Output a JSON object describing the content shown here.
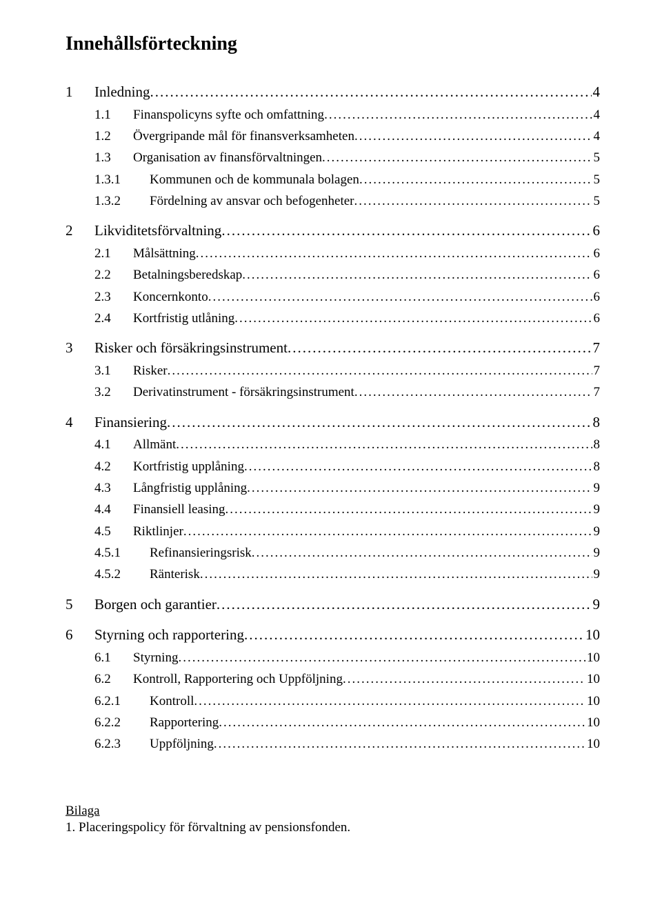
{
  "title": "Innehållsförteckning",
  "toc": [
    {
      "level": 1,
      "num": "1",
      "text": "Inledning",
      "page": "4"
    },
    {
      "level": 2,
      "num": "1.1",
      "text": "Finanspolicyns syfte och omfattning",
      "page": "4"
    },
    {
      "level": 2,
      "num": "1.2",
      "text": "Övergripande mål för finansverksamheten",
      "page": "4"
    },
    {
      "level": 2,
      "num": "1.3",
      "text": "Organisation av finansförvaltningen",
      "page": "5"
    },
    {
      "level": 3,
      "num": "1.3.1",
      "text": "Kommunen och de kommunala bolagen",
      "page": "5"
    },
    {
      "level": 3,
      "num": "1.3.2",
      "text": "Fördelning av ansvar och befogenheter",
      "page": "5"
    },
    {
      "level": 1,
      "num": "2",
      "text": "Likviditetsförvaltning",
      "page": "6"
    },
    {
      "level": 2,
      "num": "2.1",
      "text": "Målsättning",
      "page": "6"
    },
    {
      "level": 2,
      "num": "2.2",
      "text": "Betalningsberedskap",
      "page": "6"
    },
    {
      "level": 2,
      "num": "2.3",
      "text": "Koncernkonto",
      "page": "6"
    },
    {
      "level": 2,
      "num": "2.4",
      "text": "Kortfristig utlåning",
      "page": "6"
    },
    {
      "level": 1,
      "num": "3",
      "text": "Risker och försäkringsinstrument",
      "page": "7"
    },
    {
      "level": 2,
      "num": "3.1",
      "text": "Risker",
      "page": "7"
    },
    {
      "level": 2,
      "num": "3.2",
      "text": "Derivatinstrument - försäkringsinstrument",
      "page": "7"
    },
    {
      "level": 1,
      "num": "4",
      "text": "Finansiering",
      "page": "8"
    },
    {
      "level": 2,
      "num": "4.1",
      "text": "Allmänt",
      "page": "8"
    },
    {
      "level": 2,
      "num": "4.2",
      "text": "Kortfristig upplåning",
      "page": "8"
    },
    {
      "level": 2,
      "num": "4.3",
      "text": "Långfristig upplåning",
      "page": "9"
    },
    {
      "level": 2,
      "num": "4.4",
      "text": "Finansiell leasing",
      "page": "9"
    },
    {
      "level": 2,
      "num": "4.5",
      "text": "Riktlinjer",
      "page": "9"
    },
    {
      "level": 3,
      "num": "4.5.1",
      "text": "Refinansieringsrisk",
      "page": "9"
    },
    {
      "level": 3,
      "num": "4.5.2",
      "text": "Ränterisk",
      "page": "9"
    },
    {
      "level": 1,
      "num": "5",
      "text": "Borgen och garantier",
      "page": "9"
    },
    {
      "level": 1,
      "num": "6",
      "text": "Styrning och rapportering",
      "page": "10"
    },
    {
      "level": 2,
      "num": "6.1",
      "text": "Styrning",
      "page": "10"
    },
    {
      "level": 2,
      "num": "6.2",
      "text": "Kontroll, Rapportering och Uppföljning",
      "page": "10"
    },
    {
      "level": 3,
      "num": "6.2.1",
      "text": "Kontroll",
      "page": "10"
    },
    {
      "level": 3,
      "num": "6.2.2",
      "text": "Rapportering",
      "page": "10"
    },
    {
      "level": 3,
      "num": "6.2.3",
      "text": "Uppföljning",
      "page": "10"
    }
  ],
  "appendix": {
    "heading": "Bilaga",
    "items": [
      "1. Placeringspolicy för förvaltning av pensionsfonden."
    ]
  },
  "style": {
    "dot_fill": "........................................................................................................................................................................................................"
  }
}
